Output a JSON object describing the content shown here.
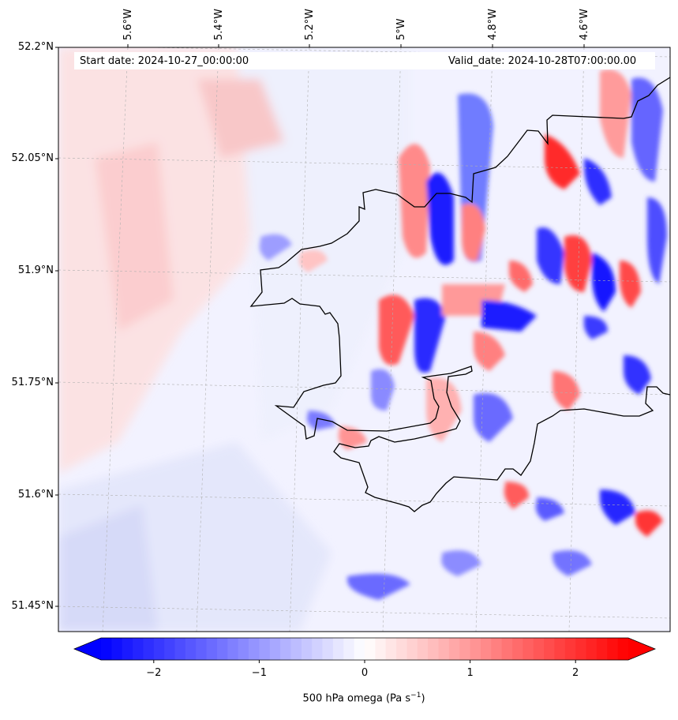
{
  "header": {
    "start_label": "Start date: 2024-10-27_00:00:00",
    "valid_label": "Valid_date: 2024-10-28T07:00:00.00"
  },
  "lat_labels": [
    "52.2°N",
    "52.05°N",
    "51.9°N",
    "51.75°N",
    "51.6°N",
    "51.45°N"
  ],
  "lon_labels": [
    "5.6°W",
    "5.4°W",
    "5.2°W",
    "5°W",
    "4.8°W",
    "4.6°W"
  ],
  "colorbar": {
    "title": "500 hPa omega (Pa s",
    "title_sup": "−1",
    "title_end": ")",
    "ticks": [
      "−2",
      "−1",
      "0",
      "1",
      "2"
    ],
    "range": [
      -2.5,
      2.5
    ],
    "cmap": "bwr",
    "colors": {
      "min": "#0000ff",
      "mid": "#ffffff",
      "max": "#ff0000"
    }
  },
  "map_data": {
    "variable": "500 hPa omega",
    "units": "Pa s-1",
    "extent_lon": [
      -5.75,
      -4.45
    ],
    "extent_lat": [
      51.42,
      52.2
    ],
    "coastline_color": "#000000"
  }
}
